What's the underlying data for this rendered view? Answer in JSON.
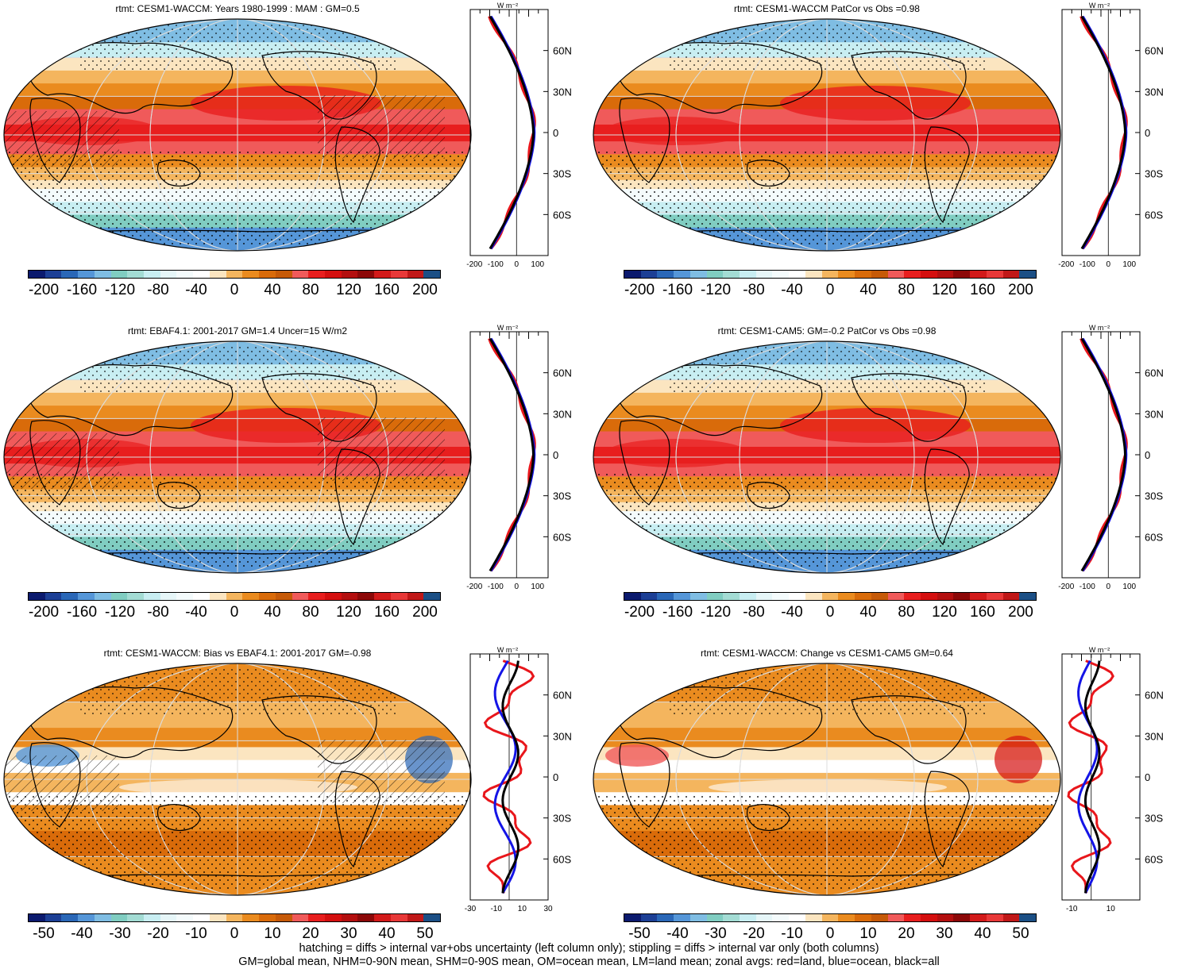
{
  "panels": [
    {
      "title": "rtmt: CESM1-WACCM: Years 1980-1999 : MAM : GM=0.5",
      "scale": "abs",
      "hatch": true,
      "zonal": "abs",
      "variant": 0
    },
    {
      "title": "rtmt: CESM1-WACCM PatCor vs Obs =0.98",
      "scale": "abs",
      "hatch": false,
      "zonal": "abs",
      "variant": 1
    },
    {
      "title": "rtmt: EBAF4.1: 2001-2017 GM=1.4 Uncer=15 W/m2",
      "scale": "abs",
      "hatch": true,
      "zonal": "abs",
      "variant": 2
    },
    {
      "title": "rtmt: CESM1-CAM5: GM=-0.2 PatCor vs Obs =0.98",
      "scale": "abs",
      "hatch": false,
      "zonal": "abs",
      "variant": 3
    },
    {
      "title": "rtmt: CESM1-WACCM: Bias vs EBAF4.1: 2001-2017 GM=-0.98",
      "scale": "diff",
      "hatch": true,
      "zonal": "diffL",
      "variant": 4
    },
    {
      "title": "rtmt: CESM1-WACCM: Change vs CESM1-CAM5 GM=0.64",
      "scale": "diff",
      "hatch": false,
      "zonal": "diffR",
      "variant": 5
    }
  ],
  "colorbar": {
    "colors": [
      "#0b1a6e",
      "#1c3f95",
      "#2a67b7",
      "#5596d8",
      "#7fbde3",
      "#80cdc1",
      "#a3dcd4",
      "#c8eef2",
      "#e6f6f8",
      "#f4fbfc",
      "#ffffff",
      "#fbe5c0",
      "#f4b55e",
      "#ea8b1f",
      "#d96b0a",
      "#c65a08",
      "#f05a5a",
      "#e81e1e",
      "#d40f0f",
      "#b30f0f",
      "#8c0808",
      "#d21a1a",
      "#e83838",
      "#c01818",
      "#1b4f85"
    ],
    "abs_labels": [
      "-200",
      "-160",
      "-120",
      "-80",
      "-40",
      "0",
      "40",
      "80",
      "120",
      "160",
      "200"
    ],
    "diff_labels": [
      "-50",
      "-40",
      "-30",
      "-20",
      "-10",
      "0",
      "10",
      "20",
      "30",
      "40",
      "50"
    ]
  },
  "zonal_axes": {
    "units": "W m⁻²",
    "lat_labels": [
      "60N",
      "30N",
      "0",
      "30S",
      "60S"
    ],
    "abs_ticks": [
      "-200",
      "-100",
      "0",
      "100"
    ],
    "diffL_ticks": [
      "-30",
      "-10",
      "10",
      "30"
    ],
    "diffR_ticks": [
      "-10",
      "10"
    ]
  },
  "legend_colors": {
    "land": "#e8161b",
    "ocean": "#1414e6",
    "all": "#000000"
  },
  "footer": {
    "line1": "hatching = diffs > internal var+obs uncertainty (left column only); stippling = diffs > internal var only (both columns)",
    "line2": "GM=global mean, NHM=0-90N mean, SHM=0-90S mean, OM=ocean mean, LM=land mean; zonal avgs: red=land, blue=ocean, black=all"
  }
}
